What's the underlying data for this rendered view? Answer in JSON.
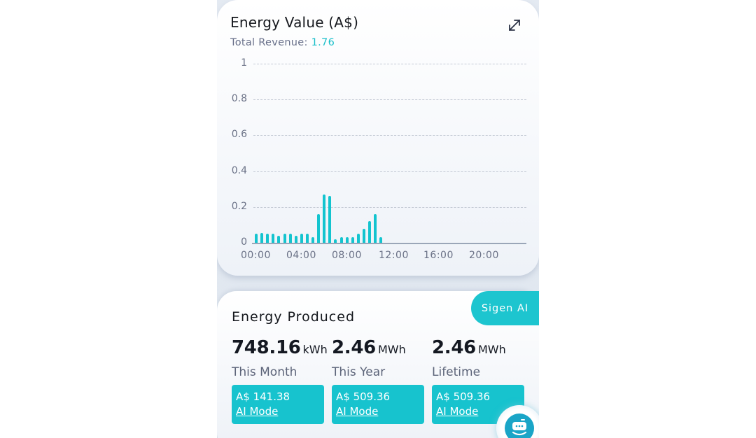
{
  "energy_value_card": {
    "title": "Energy Value (A$)",
    "subtitle_label": "Total Revenue: ",
    "subtitle_value": "1.76",
    "expand_icon": "expand-arrows-icon"
  },
  "chart_data": {
    "type": "bar",
    "title": "Energy Value (A$)",
    "subtitle": "Total Revenue: 1.76",
    "xlabel": "",
    "ylabel": "",
    "ylim": [
      0,
      1
    ],
    "y_ticks": [
      "1",
      "0.8",
      "0.6",
      "0.4",
      "0.2",
      "0"
    ],
    "x_ticks": [
      "00:00",
      "04:00",
      "08:00",
      "12:00",
      "16:00",
      "20:00"
    ],
    "grid": true,
    "color": "#13c4cf",
    "categories": [
      "00:00",
      "00:30",
      "01:00",
      "01:30",
      "02:00",
      "02:30",
      "03:00",
      "03:30",
      "04:00",
      "04:30",
      "05:00",
      "05:30",
      "06:00",
      "06:30",
      "07:00",
      "07:30",
      "08:00",
      "08:30",
      "09:00",
      "09:30",
      "10:00",
      "10:30",
      "11:00"
    ],
    "values": [
      0.05,
      0.055,
      0.05,
      0.05,
      0.04,
      0.05,
      0.05,
      0.04,
      0.05,
      0.05,
      0.03,
      0.16,
      0.27,
      0.26,
      0.02,
      0.03,
      0.03,
      0.03,
      0.05,
      0.08,
      0.12,
      0.16,
      0.03
    ]
  },
  "energy_produced_card": {
    "title": "Energy Produced",
    "badge": "Sigen AI",
    "stats": [
      {
        "value": "748.16",
        "unit": "kWh",
        "label": "This Month",
        "amount": "A$ 141.38",
        "mode": "AI Mode"
      },
      {
        "value": "2.46",
        "unit": "MWh",
        "label": "This Year",
        "amount": "A$ 509.36",
        "mode": "AI Mode"
      },
      {
        "value": "2.46",
        "unit": "MWh",
        "label": "Lifetime",
        "amount": "A$ 509.36",
        "mode": "AI Mode"
      }
    ]
  },
  "assistant_button": {
    "icon": "robot-assistant-icon"
  }
}
